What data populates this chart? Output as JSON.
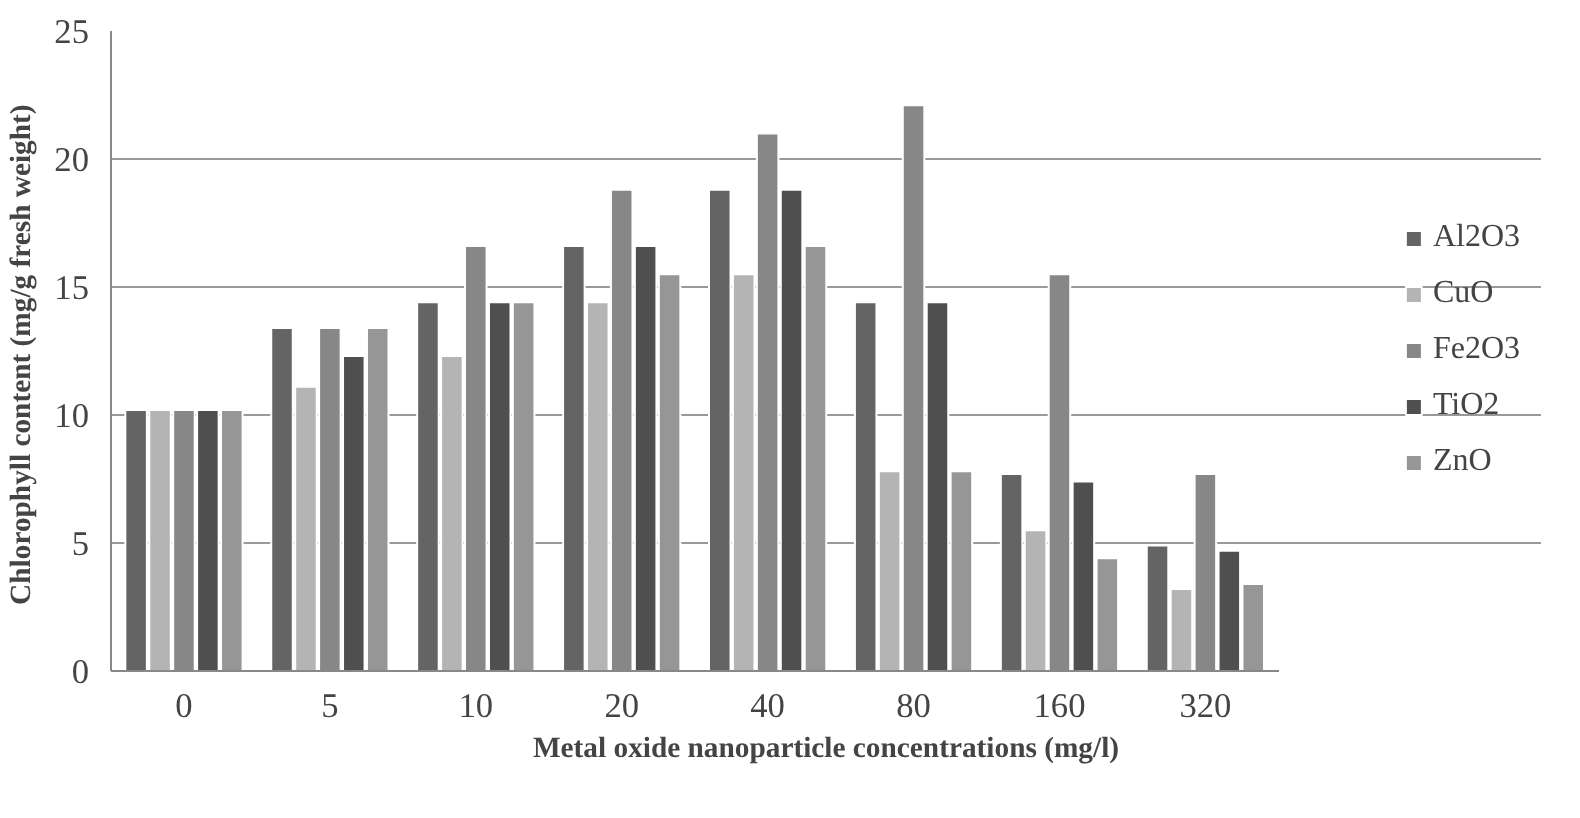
{
  "chart_data": {
    "type": "bar",
    "xlabel": "Metal oxide nanoparticle concentrations (mg/l)",
    "ylabel": "Chlorophyll  content (mg/g fresh weight)",
    "categories": [
      "0",
      "5",
      "10",
      "20",
      "40",
      "80",
      "160",
      "320"
    ],
    "series": [
      {
        "name": "Al2O3",
        "color": "#646464",
        "values": [
          10.2,
          13.4,
          14.4,
          16.6,
          18.8,
          14.4,
          7.7,
          4.9
        ]
      },
      {
        "name": "CuO",
        "color": "#b4b4b4",
        "values": [
          10.2,
          11.1,
          12.3,
          14.4,
          15.5,
          7.8,
          5.5,
          3.2
        ]
      },
      {
        "name": "Fe2O3",
        "color": "#878787",
        "values": [
          10.2,
          13.4,
          16.6,
          18.8,
          21.0,
          22.1,
          15.5,
          7.7
        ]
      },
      {
        "name": "TiO2",
        "color": "#4f4f4f",
        "values": [
          10.2,
          12.3,
          14.4,
          16.6,
          18.8,
          14.4,
          7.4,
          4.7
        ]
      },
      {
        "name": "ZnO",
        "color": "#969696",
        "values": [
          10.2,
          13.4,
          14.4,
          15.5,
          16.6,
          7.8,
          4.4,
          3.4
        ]
      }
    ],
    "ylim": [
      0,
      25
    ],
    "yticks": [
      0,
      5,
      10,
      15,
      20,
      25
    ],
    "grid": "y",
    "legend": "right"
  }
}
